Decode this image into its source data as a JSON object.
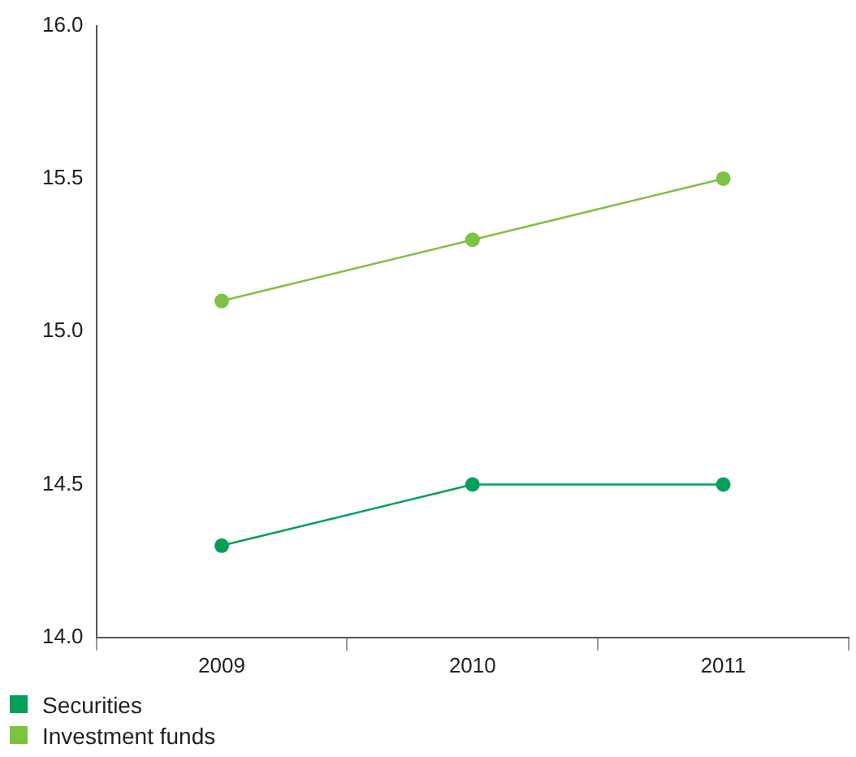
{
  "chart_data": {
    "type": "line",
    "categories": [
      "2009",
      "2010",
      "2011"
    ],
    "series": [
      {
        "name": "Securities",
        "color": "#00a05a",
        "values": [
          14.3,
          14.5,
          14.5
        ]
      },
      {
        "name": "Investment funds",
        "color": "#7dc242",
        "values": [
          15.1,
          15.3,
          15.5
        ]
      }
    ],
    "ylim": [
      14.0,
      16.0
    ],
    "yticks": [
      {
        "value": 14,
        "label": "14.0"
      },
      {
        "value": 14.5,
        "label": "14.5"
      },
      {
        "value": 15,
        "label": "15.0"
      },
      {
        "value": 15.5,
        "label": "15.5"
      },
      {
        "value": 16,
        "label": "16.0"
      }
    ],
    "grid": false,
    "legend": "bottom left",
    "marker": "circle",
    "line_style": "solid"
  }
}
